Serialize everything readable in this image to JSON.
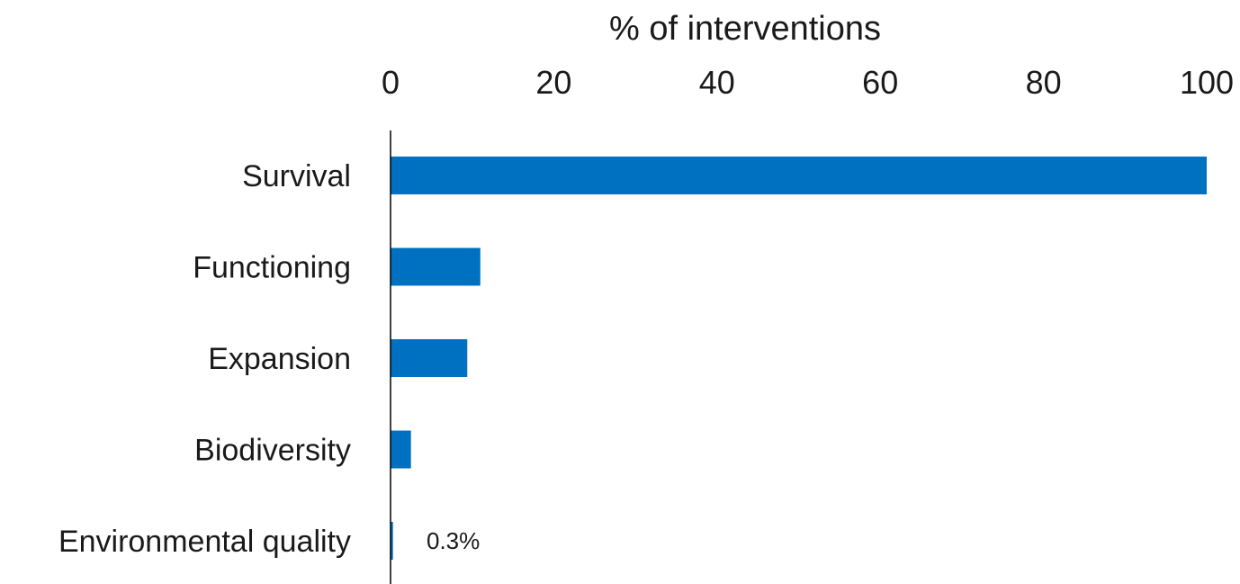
{
  "chart_data": {
    "type": "bar",
    "orientation": "horizontal",
    "title": "",
    "xlabel": "% of interventions",
    "ylabel": "",
    "xlim": [
      0,
      100
    ],
    "x_axis_position": "top",
    "xticks": [
      0,
      20,
      40,
      60,
      80,
      100
    ],
    "grid": false,
    "legend": "none",
    "categories": [
      "Survival",
      "Functioning",
      "Expansion",
      "Biodiversity",
      "Environmental quality"
    ],
    "values": [
      100,
      11,
      9.4,
      2.5,
      0.3
    ],
    "bar_color": "#0070C0",
    "annotations": [
      {
        "category": "Environmental quality",
        "text": "0.3%"
      }
    ]
  }
}
